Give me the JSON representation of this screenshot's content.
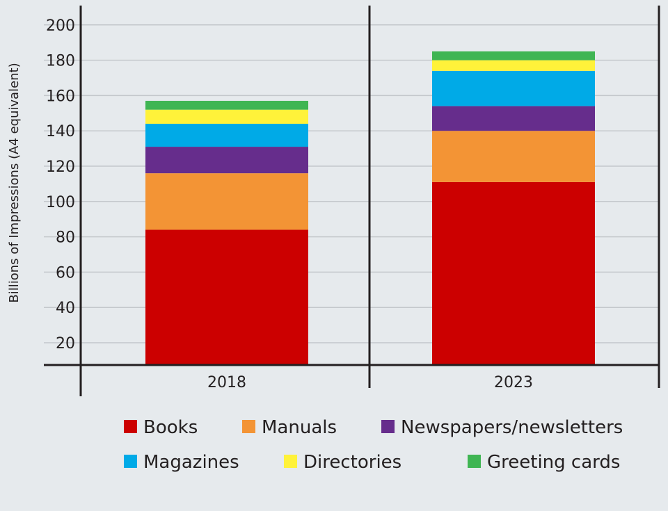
{
  "chart_data": {
    "type": "bar",
    "stacked": true,
    "title": "",
    "xlabel": "",
    "ylabel": "Billions of Impressions (A4 equivalent)",
    "categories": [
      "2018",
      "2023"
    ],
    "yticks": [
      20,
      40,
      60,
      80,
      100,
      120,
      140,
      160,
      180,
      200
    ],
    "ylim": [
      7,
      211
    ],
    "grid": true,
    "legend_position": "bottom",
    "series": [
      {
        "name": "Books",
        "color": "#cc0000",
        "values": [
          84,
          111
        ]
      },
      {
        "name": "Manuals",
        "color": "#f39435",
        "values": [
          32,
          29
        ]
      },
      {
        "name": "Newspapers/newsletters",
        "color": "#662d8c",
        "values": [
          15,
          14
        ]
      },
      {
        "name": "Magazines",
        "color": "#00aae7",
        "values": [
          13,
          20
        ]
      },
      {
        "name": "Directories",
        "color": "#fff23a",
        "values": [
          8,
          6
        ]
      },
      {
        "name": "Greeting cards",
        "color": "#3fb553",
        "values": [
          5,
          5
        ]
      }
    ]
  }
}
